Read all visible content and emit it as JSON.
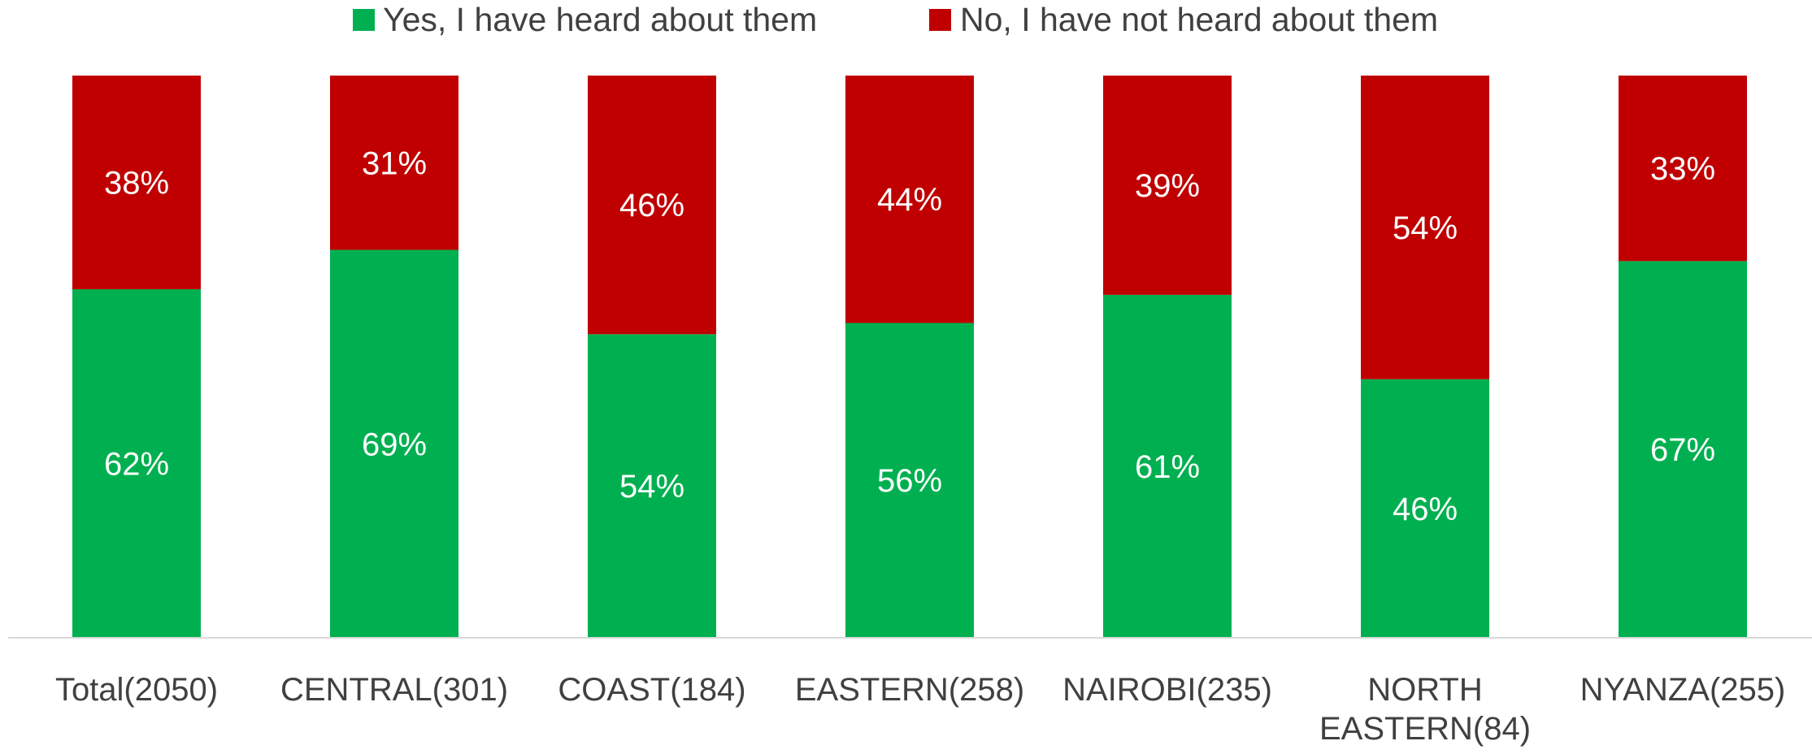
{
  "chart_data": {
    "type": "bar",
    "stacked": true,
    "categories": [
      [
        "Total(2050)"
      ],
      [
        "CENTRAL(301)"
      ],
      [
        "COAST(184)"
      ],
      [
        "EASTERN(258)"
      ],
      [
        "NAIROBI(235)"
      ],
      [
        "NORTH",
        "EASTERN(84)"
      ],
      [
        "NYANZA(255)"
      ]
    ],
    "series": [
      {
        "name": "Yes, I have heard about them",
        "color": "#00B050",
        "values": [
          62,
          69,
          54,
          56,
          61,
          46,
          67
        ]
      },
      {
        "name": "No, I have not heard about them",
        "color": "#C00000",
        "values": [
          38,
          31,
          46,
          44,
          39,
          54,
          33
        ]
      }
    ],
    "value_suffix": "%",
    "ylim": [
      0,
      100
    ],
    "legend_position": "top",
    "grid": false
  }
}
